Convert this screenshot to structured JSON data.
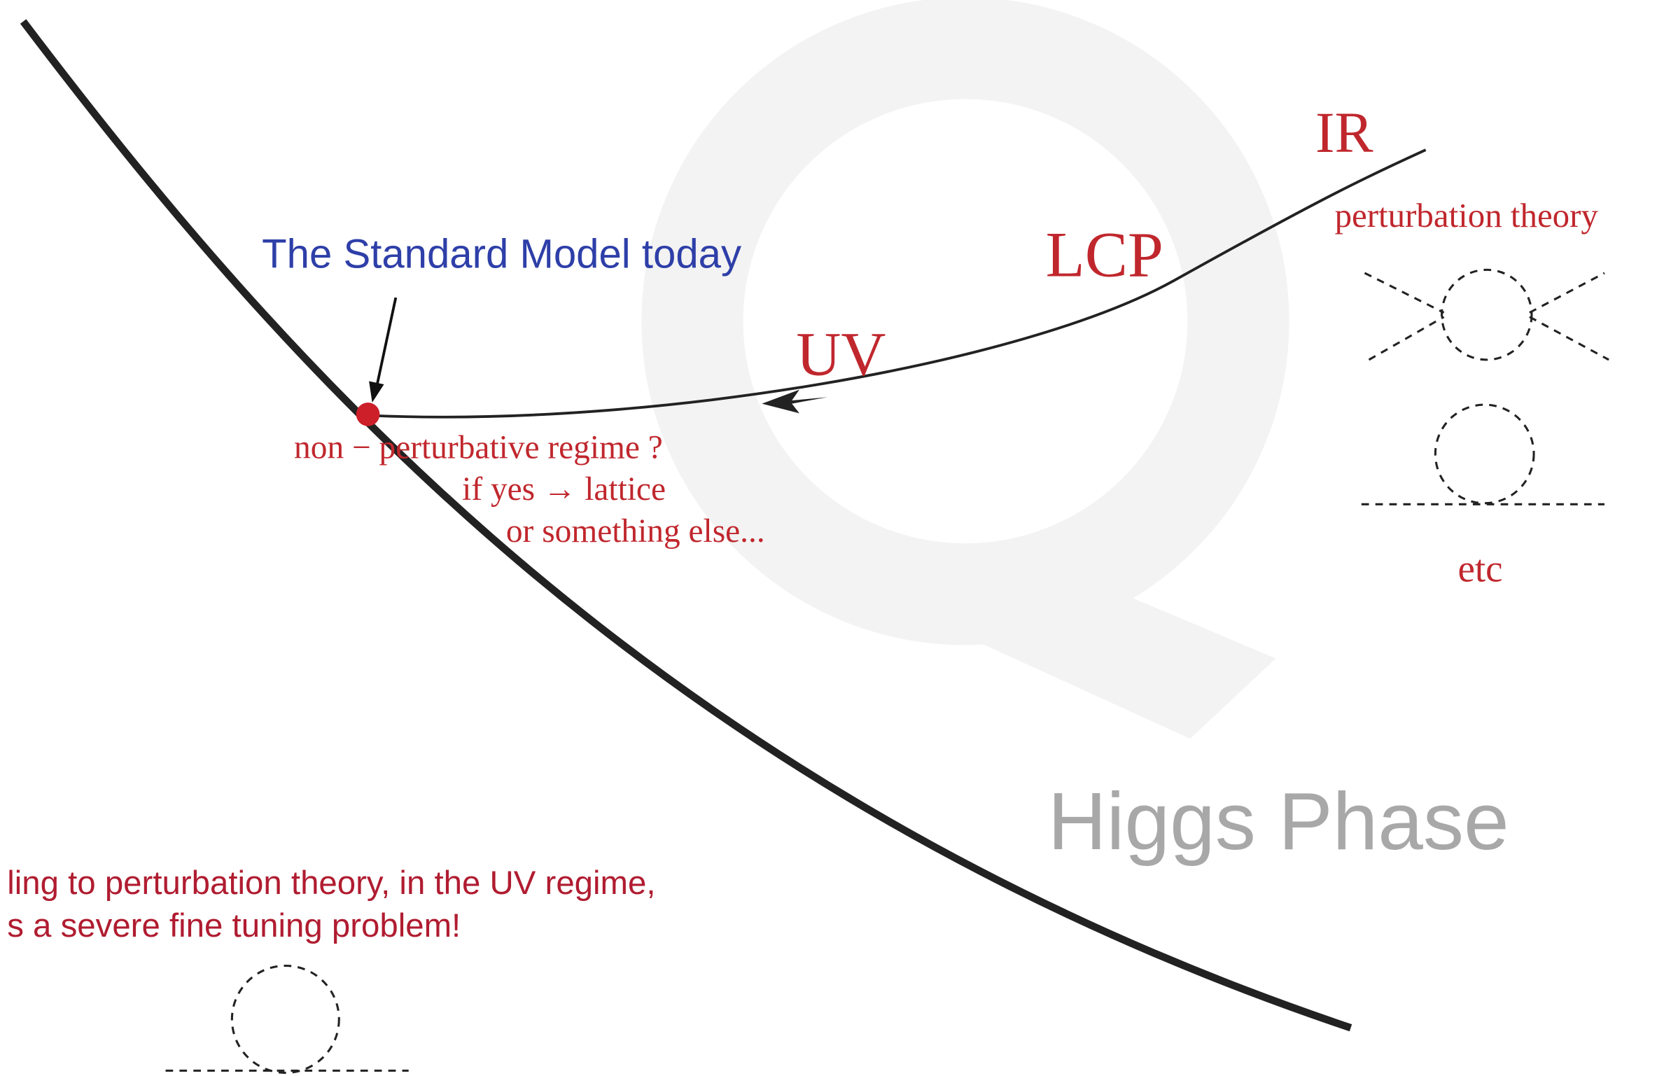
{
  "labels": {
    "ir": "IR",
    "perturbation_theory": "perturbation theory",
    "lcp": "LCP",
    "uv": "UV",
    "standard_model": "The Standard Model today",
    "nonpert_line1": "non − perturbative regime ?",
    "nonpert_line2": "if yes → lattice",
    "nonpert_line3": "or something else...",
    "etc": "etc",
    "higgs_phase": "Higgs Phase",
    "note_line1": "ling to perturbation theory, in the UV regime,",
    "note_line2": "s a severe fine tuning problem!"
  }
}
